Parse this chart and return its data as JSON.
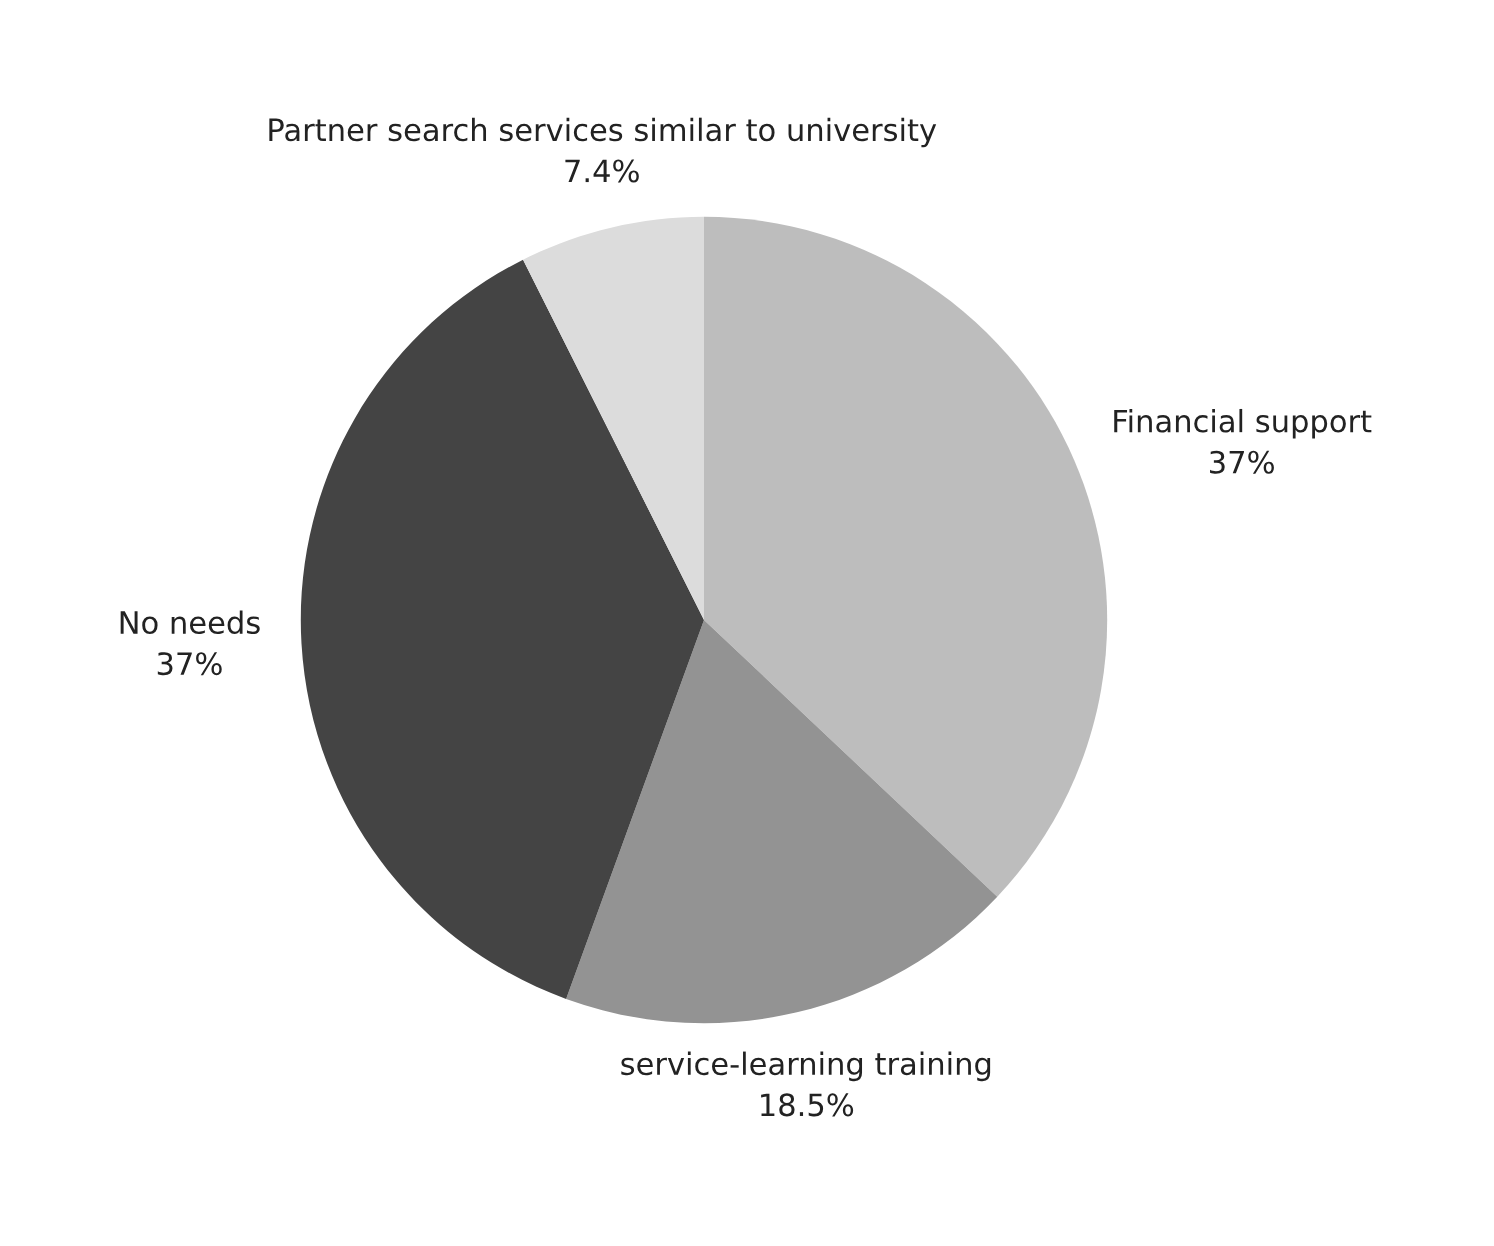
{
  "chart_data": {
    "type": "pie",
    "categories": [
      "Financial support",
      "service-learning training",
      "No needs",
      "Partner search services similar to university"
    ],
    "values": [
      37,
      18.5,
      37,
      7.4
    ],
    "value_labels": [
      "37%",
      "18.5%",
      "37%",
      "7.4%"
    ],
    "colors": [
      "#bdbdbd",
      "#939393",
      "#444444",
      "#dcdcdc"
    ],
    "legend": false
  }
}
